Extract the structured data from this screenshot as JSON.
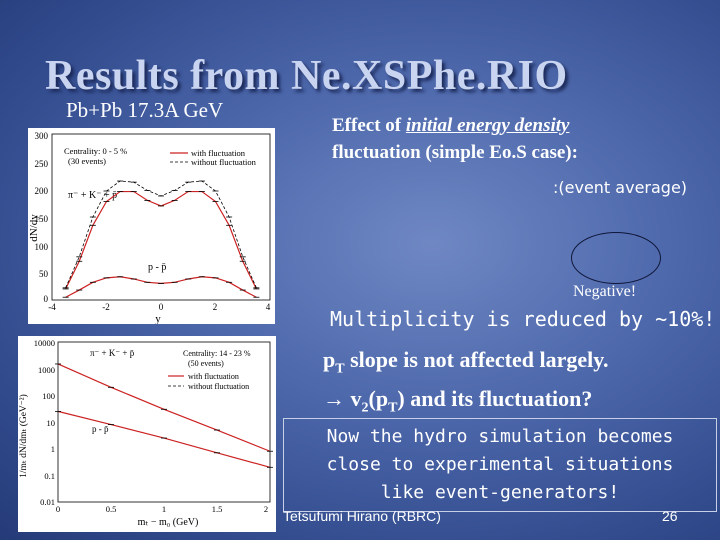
{
  "slide": {
    "title": "Results from Ne.XSPhe.RIO",
    "subtitle": "Pb+Pb 17.3A GeV",
    "effect": {
      "prefix": "Effect of ",
      "emphasis": "initial energy density",
      "line2": "fluctuation (simple Eo.S case):"
    },
    "event_average": ":(event average)",
    "negative": "Negative!",
    "multiplicity": "Multiplicity is reduced by ~10%!",
    "pt_slope": {
      "pt_main": "p",
      "pt_sub": "T",
      "line1_rest": " slope is not affected largely.",
      "arrow": "→",
      "v": " v",
      "v_sub": "2",
      "paren_open": "(p",
      "paren_sub": "T",
      "line2_rest": ") and its fluctuation?"
    },
    "hydro_box": {
      "line1": "Now the hydro simulation becomes",
      "line2": "close to experimental situations",
      "line3": "like event-generators!"
    },
    "footer": "Tetsufumi Hirano (RBRC)",
    "page_number": "26"
  },
  "plot_rapidity": {
    "ylabel": "dN/dy",
    "xlabel": "y",
    "y_ticks": [
      "300",
      "250",
      "200",
      "150",
      "100",
      "50",
      "0"
    ],
    "x_ticks": [
      "-4",
      "-2",
      "0",
      "2",
      "4"
    ],
    "legend_header": "Centrality: 0 - 5 %",
    "legend_events": "(30 events)",
    "legend_with": "with fluctuation",
    "legend_without": "without fluctuation",
    "label_neg": "π⁻ + K⁻ + p̄",
    "label_p": "p - p̄",
    "chart_data": {
      "type": "line",
      "xlim": [
        -4,
        4
      ],
      "ylim": [
        0,
        300
      ],
      "series": [
        {
          "name": "with fluctuation",
          "x": [
            -3.5,
            -3,
            -2.5,
            -2,
            -1.5,
            -1,
            -0.5,
            0,
            0.5,
            1,
            1.5,
            2,
            2.5,
            3,
            3.5
          ],
          "values": [
            20,
            70,
            135,
            178,
            196,
            196,
            180,
            170,
            180,
            196,
            196,
            178,
            135,
            70,
            20
          ]
        },
        {
          "name": "without fluctuation",
          "x": [
            -3.5,
            -3,
            -2.5,
            -2,
            -1.5,
            -1,
            -0.5,
            0,
            0.5,
            1,
            1.5,
            2,
            2.5,
            3,
            3.5
          ],
          "values": [
            22,
            78,
            150,
            197,
            215,
            213,
            198,
            188,
            198,
            213,
            215,
            197,
            150,
            78,
            22
          ]
        },
        {
          "name": "p - p̄ with fluctuation",
          "x": [
            -3.5,
            -3,
            -2.5,
            -2,
            -1.5,
            -1,
            -0.5,
            0,
            0.5,
            1,
            1.5,
            2,
            2.5,
            3,
            3.5
          ],
          "values": [
            5,
            18,
            32,
            40,
            42,
            38,
            32,
            30,
            32,
            38,
            42,
            40,
            32,
            18,
            5
          ]
        }
      ]
    }
  },
  "plot_mt": {
    "ylabel": "1/mₜ dN/dmₜ (GeV⁻²)",
    "xlabel": "mₜ − m₀ (GeV)",
    "y_ticks": [
      "10000",
      "1000",
      "100",
      "10",
      "1",
      "0.1",
      "0.01"
    ],
    "x_ticks": [
      "0",
      "0.5",
      "1",
      "1.5",
      "2"
    ],
    "legend_header": "Centrality: 14 - 23 %",
    "legend_events": "(50 events)",
    "legend_with": "with fluctuation",
    "legend_without": "without fluctuation",
    "label_neg": "π⁻ + K⁻ + p̄",
    "label_p": "p - p̄",
    "chart_data": {
      "type": "line",
      "xlim": [
        0,
        2
      ],
      "ylim": [
        0.01,
        10000
      ],
      "yscale": "log",
      "series": [
        {
          "name": "π⁻ + K⁻ + p̄",
          "x": [
            0,
            0.5,
            1,
            1.5,
            2
          ],
          "values": [
            1500,
            200,
            30,
            5,
            0.8
          ]
        },
        {
          "name": "p - p̄",
          "x": [
            0,
            0.5,
            1,
            1.5,
            2
          ],
          "values": [
            25,
            8,
            2.5,
            0.7,
            0.2
          ]
        }
      ]
    }
  },
  "colors": {
    "accent_red": "#cc2222",
    "background": "#4d68ab"
  }
}
